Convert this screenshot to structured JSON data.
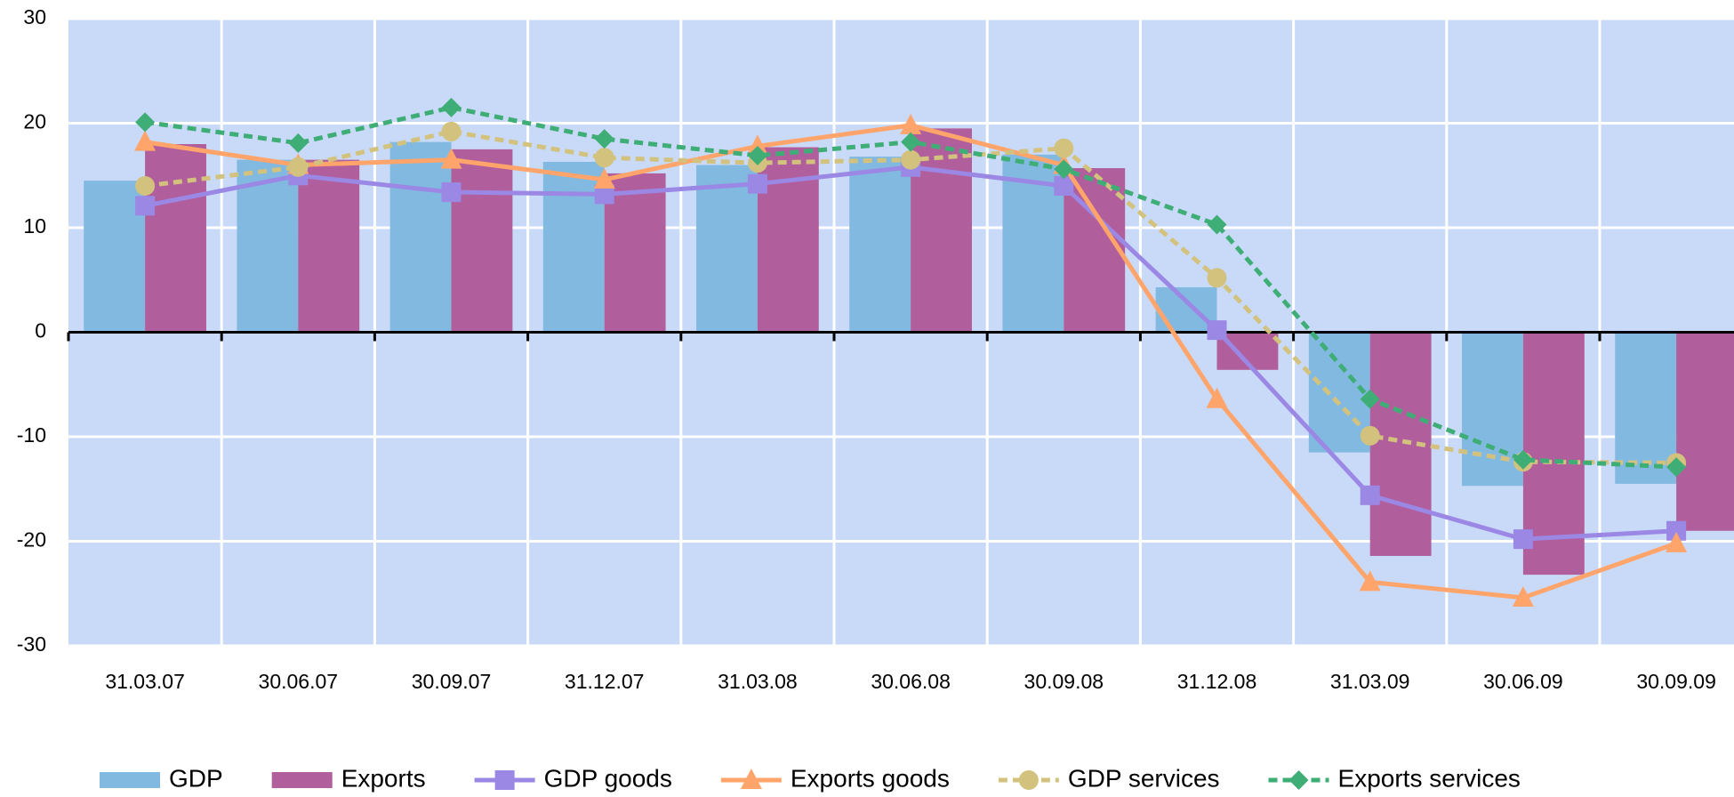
{
  "chart_data": {
    "type": "bar-line",
    "categories": [
      "31.03.07",
      "30.06.07",
      "30.09.07",
      "31.12.07",
      "31.03.08",
      "30.06.08",
      "30.09.08",
      "31.12.08",
      "31.03.09",
      "30.06.09",
      "30.09.09"
    ],
    "series": [
      {
        "name": "GDP",
        "kind": "bar",
        "color": "#82b9e0",
        "values": [
          14.5,
          16.5,
          18.2,
          16.3,
          16.0,
          16.8,
          17.0,
          4.3,
          -11.5,
          -14.7,
          -14.5
        ]
      },
      {
        "name": "Exports",
        "kind": "bar",
        "color": "#b05f9c",
        "values": [
          18.0,
          16.5,
          17.5,
          15.2,
          17.7,
          19.5,
          15.7,
          -3.6,
          -21.4,
          -23.2,
          -19.0
        ]
      },
      {
        "name": "GDP goods",
        "kind": "line",
        "marker": "square",
        "dashed": false,
        "color": "#9b87e4",
        "values": [
          12.1,
          15.0,
          13.4,
          13.2,
          14.2,
          15.8,
          14.0,
          0.2,
          -15.6,
          -19.8,
          -19.0
        ]
      },
      {
        "name": "Exports goods",
        "kind": "line",
        "marker": "triangle",
        "dashed": false,
        "color": "#ffa46a",
        "values": [
          18.2,
          16.0,
          16.5,
          14.6,
          17.8,
          19.8,
          16.0,
          -6.4,
          -23.9,
          -25.4,
          -20.2
        ]
      },
      {
        "name": "GDP services",
        "kind": "line",
        "marker": "circle",
        "dashed": true,
        "color": "#d3c27d",
        "values": [
          14.0,
          15.8,
          19.2,
          16.7,
          16.2,
          16.5,
          17.6,
          5.2,
          -9.9,
          -12.4,
          -12.5
        ]
      },
      {
        "name": "Exports services",
        "kind": "line",
        "marker": "diamond",
        "dashed": true,
        "color": "#3fae76",
        "values": [
          20.1,
          18.1,
          21.5,
          18.5,
          16.9,
          18.2,
          15.6,
          10.3,
          -6.4,
          -12.2,
          -12.9
        ]
      }
    ],
    "ylim": [
      -30,
      30
    ],
    "yticks": [
      -30,
      -20,
      -10,
      0,
      10,
      20,
      30
    ],
    "grid": true,
    "legend": "bottom"
  }
}
